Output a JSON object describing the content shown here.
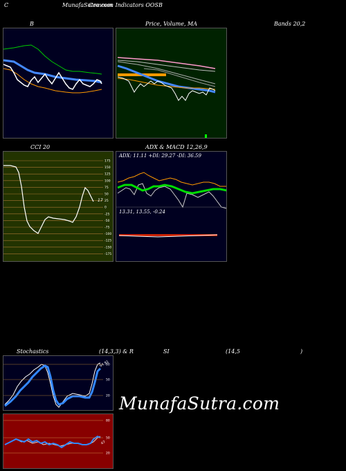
{
  "header": {
    "c_label": "C",
    "site_title": "MunafaSutra.com",
    "subtitle": "Common Indicators OOSB"
  },
  "panels": {
    "bollinger_title_left": "B",
    "price_title": "Price, Volume, MA",
    "bollinger_title_right": "Bands 20,2",
    "cci_title": "CCI 20",
    "adx_macd_title": "ADX & MACD 12,26,9",
    "adx_values": "ADX: 11.11 +DI: 29.27 -DI: 36.59",
    "macd_values": "13.31, 13.55, -0.24",
    "stoch_title": "Stochastics",
    "stoch_params": "(14,3,3) & R",
    "rsi_title": "SI",
    "rsi_params": "(14,5",
    "rsi_close": ")",
    "cci_side_label": "17",
    "stoch_side_label": "94.91",
    "rsi_side_label": "47"
  },
  "cci_ticks": [
    "175",
    "150",
    "125",
    "100",
    "75",
    "50",
    "25",
    "0",
    "-25",
    "-50",
    "-75",
    "-100",
    "-125",
    "-150",
    "-175"
  ],
  "stoch_ticks": [
    "80",
    "50",
    "20"
  ],
  "rsi_ticks": [
    "80",
    "50",
    "20"
  ],
  "watermark": "MunafaSutra.com",
  "colors": {
    "bollinger_bg": "#000020",
    "price_bg": "#002200",
    "cci_bg": "#223300",
    "adx_bg": "#000020",
    "rsi_bg": "#880000"
  }
}
